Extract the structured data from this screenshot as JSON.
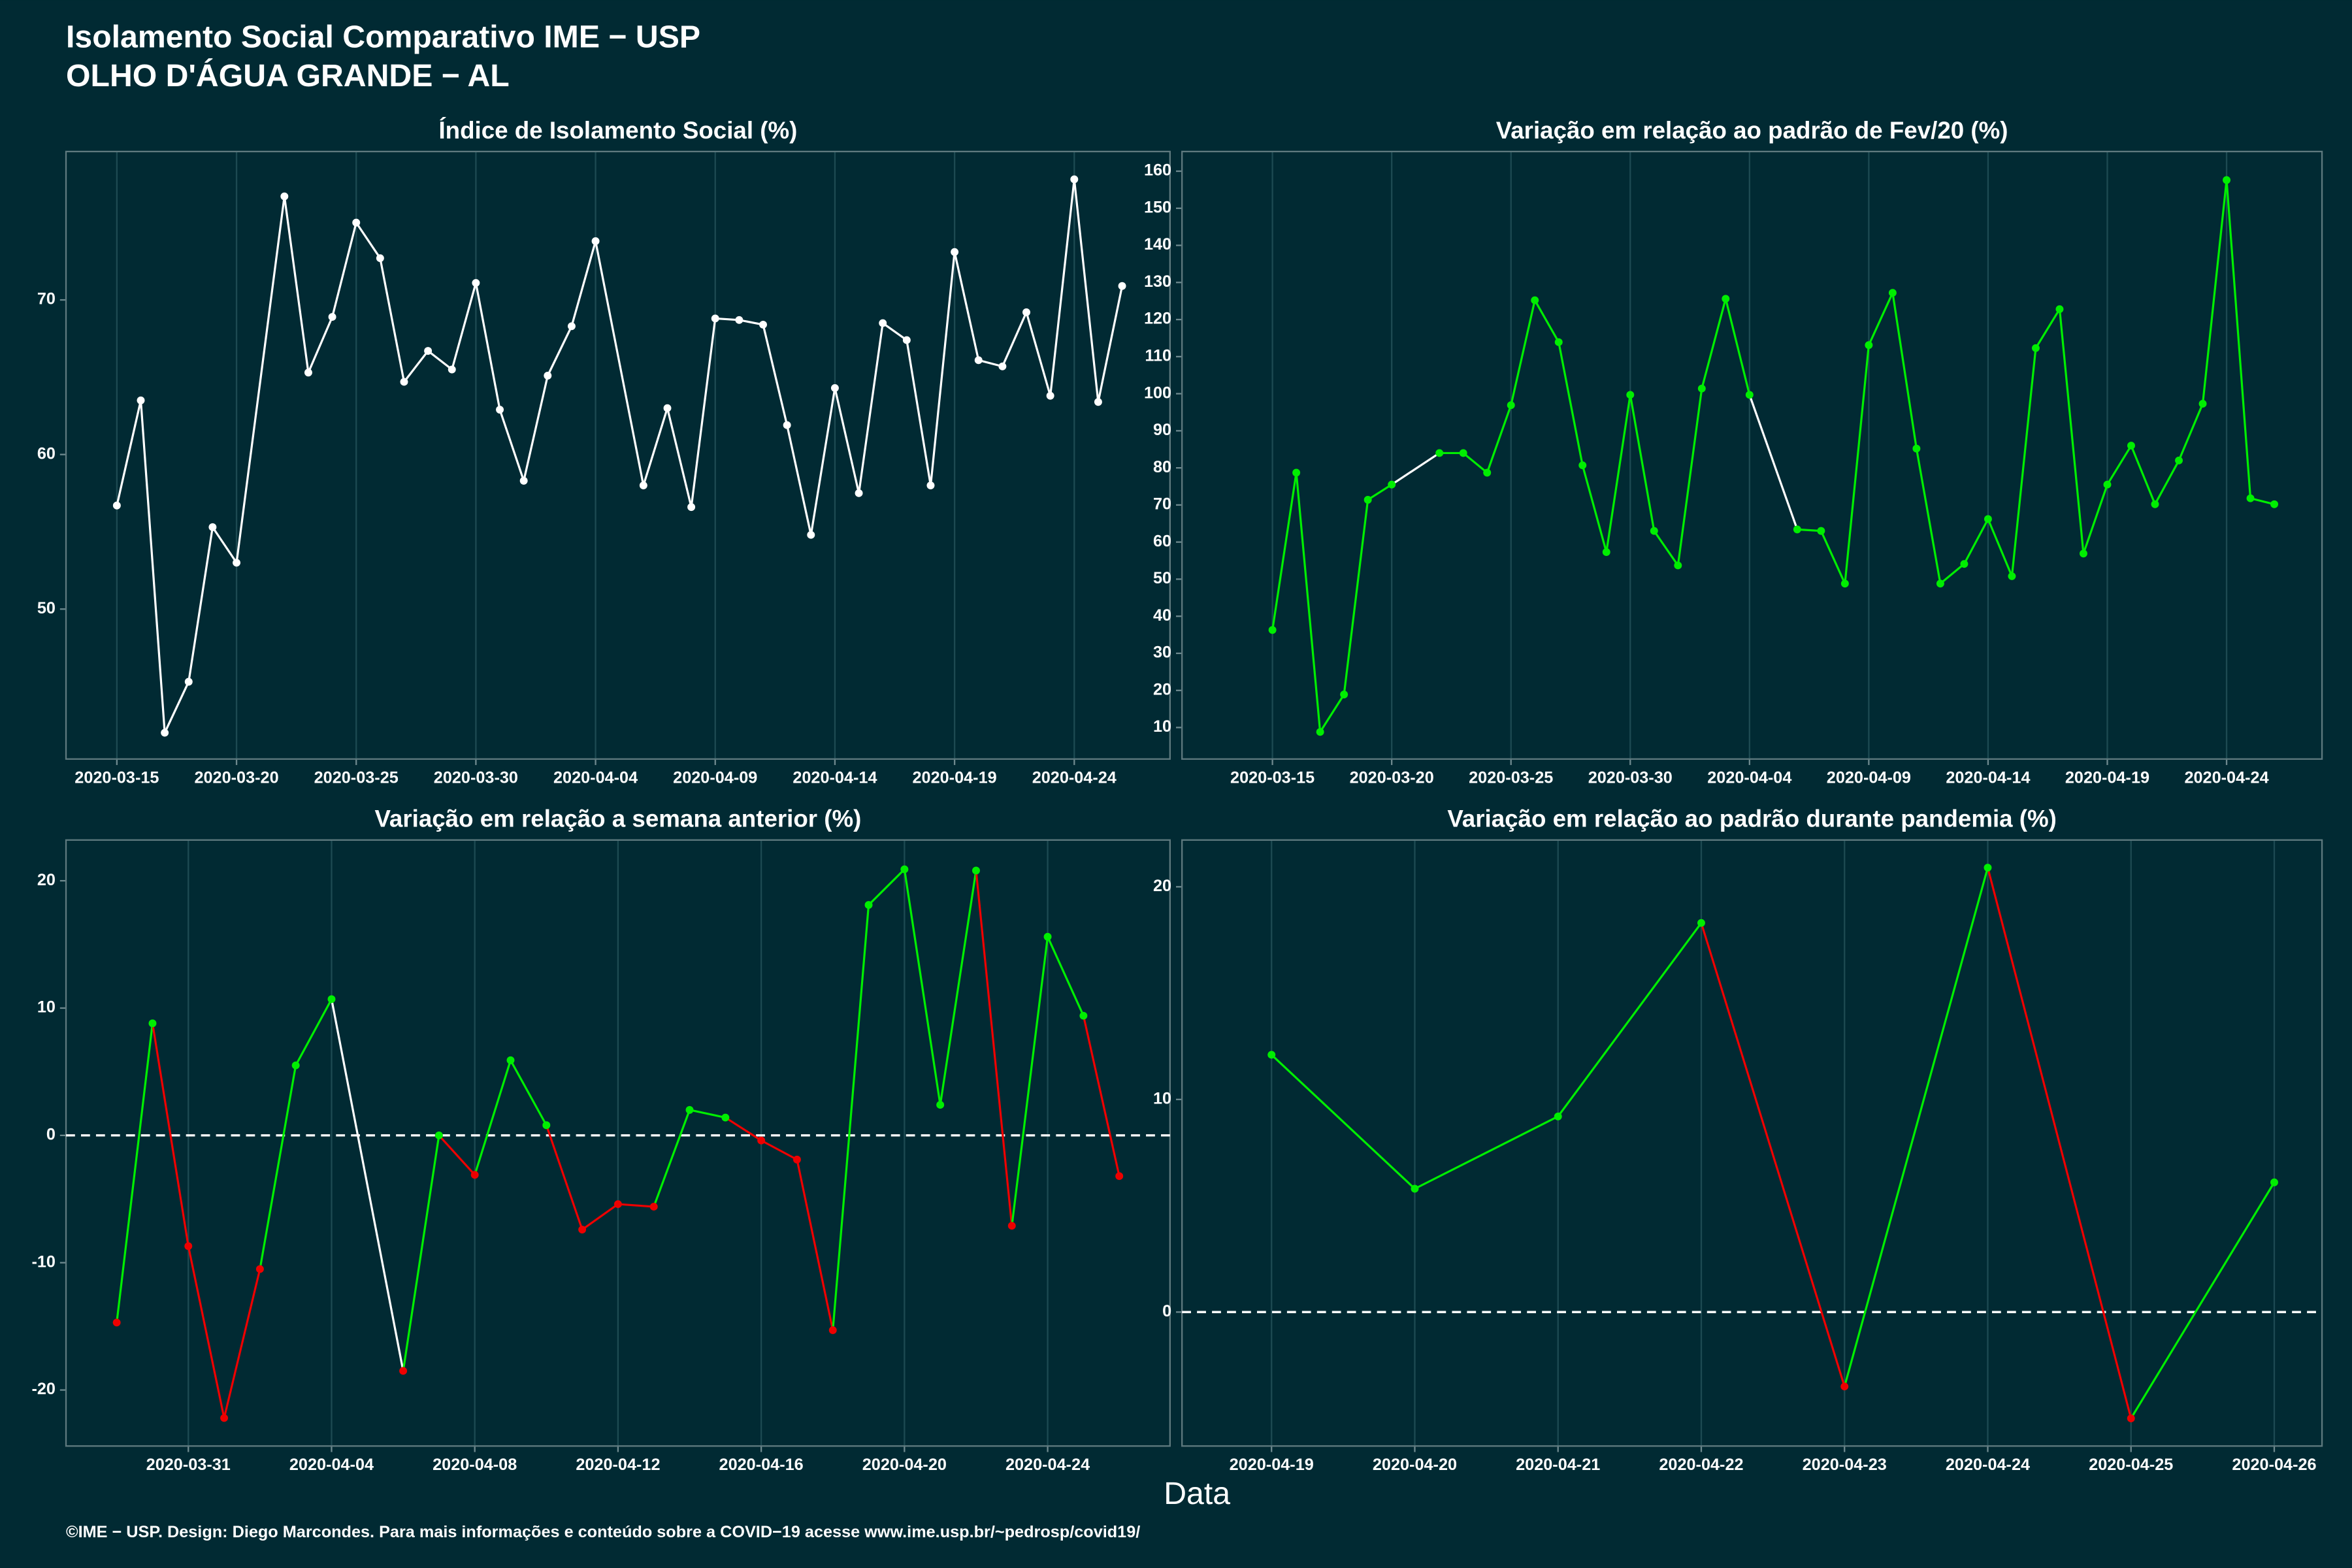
{
  "header": {
    "title": "Isolamento Social Comparativo IME − USP",
    "subtitle": "OLHO D'ÁGUA GRANDE − AL"
  },
  "xlabel": "Data",
  "footer": "©IME − USP. Design: Diego Marcondes. Para mais informações e conteúdo sobre a COVID−19 acesse www.ime.usp.br/~pedrosp/covid19/",
  "chart_data": [
    {
      "type": "line",
      "title": "Índice de Isolamento Social (%)",
      "color": "#ffffff",
      "gap_color": "#ffffff",
      "x": [
        "2020-03-15",
        "2020-03-16",
        "2020-03-17",
        "2020-03-18",
        "2020-03-19",
        "2020-03-20",
        "2020-03-22",
        "2020-03-23",
        "2020-03-24",
        "2020-03-25",
        "2020-03-26",
        "2020-03-27",
        "2020-03-28",
        "2020-03-29",
        "2020-03-30",
        "2020-03-31",
        "2020-04-01",
        "2020-04-02",
        "2020-04-03",
        "2020-04-04",
        "2020-04-06",
        "2020-04-07",
        "2020-04-08",
        "2020-04-09",
        "2020-04-10",
        "2020-04-11",
        "2020-04-12",
        "2020-04-13",
        "2020-04-14",
        "2020-04-15",
        "2020-04-16",
        "2020-04-17",
        "2020-04-18",
        "2020-04-19",
        "2020-04-20",
        "2020-04-21",
        "2020-04-22",
        "2020-04-23",
        "2020-04-24",
        "2020-04-25",
        "2020-04-26"
      ],
      "values": [
        56.7,
        63.5,
        42.0,
        45.3,
        55.3,
        53.0,
        76.7,
        65.3,
        68.9,
        75.0,
        72.7,
        64.7,
        66.7,
        65.5,
        71.1,
        62.9,
        58.3,
        65.1,
        68.3,
        73.8,
        58.0,
        63.0,
        56.6,
        68.8,
        68.7,
        68.4,
        61.9,
        54.8,
        64.3,
        57.5,
        68.5,
        67.4,
        58.0,
        73.1,
        66.1,
        65.7,
        69.2,
        63.8,
        77.8,
        63.4,
        70.9
      ],
      "xlim": [
        "2020-03-12T21:00Z",
        "2020-04-28T00:00Z"
      ],
      "ylim": [
        40.3,
        79.6
      ],
      "xticks": [
        "2020-03-15",
        "2020-03-20",
        "2020-03-25",
        "2020-03-30",
        "2020-04-04",
        "2020-04-09",
        "2020-04-14",
        "2020-04-19",
        "2020-04-24"
      ],
      "yticks": [
        50,
        60,
        70
      ]
    },
    {
      "type": "line",
      "title": "Variação em relação ao padrão de Fev/20 (%)",
      "color": "#00ee00",
      "gap_color": "#ffffff",
      "x": [
        "2020-03-15",
        "2020-03-16",
        "2020-03-17",
        "2020-03-18",
        "2020-03-19",
        "2020-03-20",
        "2020-03-22",
        "2020-03-23",
        "2020-03-24",
        "2020-03-25",
        "2020-03-26",
        "2020-03-27",
        "2020-03-28",
        "2020-03-29",
        "2020-03-30",
        "2020-03-31",
        "2020-04-01",
        "2020-04-02",
        "2020-04-03",
        "2020-04-04",
        "2020-04-06",
        "2020-04-07",
        "2020-04-08",
        "2020-04-09",
        "2020-04-10",
        "2020-04-11",
        "2020-04-12",
        "2020-04-13",
        "2020-04-14",
        "2020-04-15",
        "2020-04-16",
        "2020-04-17",
        "2020-04-18",
        "2020-04-19",
        "2020-04-20",
        "2020-04-21",
        "2020-04-22",
        "2020-04-23",
        "2020-04-24",
        "2020-04-25",
        "2020-04-26"
      ],
      "values": [
        36.3,
        78.7,
        8.8,
        18.9,
        71.4,
        75.5,
        84.0,
        84.0,
        78.7,
        96.9,
        125.2,
        113.9,
        80.7,
        57.3,
        99.7,
        63.0,
        53.7,
        101.4,
        125.6,
        99.7,
        63.4,
        63.0,
        48.8,
        113.1,
        127.2,
        85.2,
        48.8,
        54.1,
        66.2,
        50.8,
        112.3,
        122.8,
        56.9,
        75.5,
        86.0,
        70.2,
        82.0,
        97.3,
        157.6,
        71.8,
        70.2
      ],
      "xlim": [
        "2020-03-11T05:00Z",
        "2020-04-28T00:00Z"
      ],
      "ylim": [
        1.5,
        165.3
      ],
      "xticks": [
        "2020-03-15",
        "2020-03-20",
        "2020-03-25",
        "2020-03-30",
        "2020-04-04",
        "2020-04-09",
        "2020-04-14",
        "2020-04-19",
        "2020-04-24"
      ],
      "yticks": [
        10,
        20,
        30,
        40,
        50,
        60,
        70,
        80,
        90,
        100,
        110,
        120,
        130,
        140,
        150,
        160
      ]
    },
    {
      "type": "line",
      "title": "Variação em relação a semana anterior (%)",
      "positive_color": "#00ee00",
      "negative_color": "#ee0000",
      "gap_color": "#ffffff",
      "reference_line": 0,
      "x": [
        "2020-03-29",
        "2020-03-30",
        "2020-03-31",
        "2020-04-01",
        "2020-04-02",
        "2020-04-03",
        "2020-04-04",
        "2020-04-06",
        "2020-04-07",
        "2020-04-08",
        "2020-04-09",
        "2020-04-10",
        "2020-04-11",
        "2020-04-12",
        "2020-04-13",
        "2020-04-14",
        "2020-04-15",
        "2020-04-16",
        "2020-04-17",
        "2020-04-18",
        "2020-04-19",
        "2020-04-20",
        "2020-04-21",
        "2020-04-22",
        "2020-04-23",
        "2020-04-24",
        "2020-04-25",
        "2020-04-26"
      ],
      "values": [
        -14.7,
        8.8,
        -8.7,
        -22.2,
        -10.5,
        5.5,
        10.7,
        -18.5,
        0,
        -3.1,
        5.9,
        0.8,
        -7.4,
        -5.4,
        -5.6,
        2.0,
        1.4,
        -0.4,
        -1.9,
        -15.3,
        18.1,
        20.9,
        2.4,
        20.8,
        -7.1,
        15.6,
        9.4,
        -3.2
      ],
      "xlim": [
        "2020-03-27T14:00Z",
        "2020-04-27T10:00Z"
      ],
      "ylim": [
        -24.4,
        23.2
      ],
      "xticks": [
        "2020-03-31",
        "2020-04-04",
        "2020-04-08",
        "2020-04-12",
        "2020-04-16",
        "2020-04-20",
        "2020-04-24"
      ],
      "yticks": [
        -20,
        -10,
        0,
        10,
        20
      ]
    },
    {
      "type": "line",
      "title": "Variação em relação ao padrão durante pandemia (%)",
      "positive_color": "#00ee00",
      "negative_color": "#ee0000",
      "gap_color": "#ffffff",
      "reference_line": 0,
      "x": [
        "2020-04-19",
        "2020-04-20",
        "2020-04-21",
        "2020-04-22",
        "2020-04-23",
        "2020-04-24",
        "2020-04-25",
        "2020-04-26"
      ],
      "values": [
        12.1,
        5.8,
        9.2,
        18.3,
        -3.5,
        20.9,
        -5.0,
        6.1
      ],
      "xlim": [
        "2020-04-18T09:00Z",
        "2020-04-26T08:00Z"
      ],
      "ylim": [
        -6.3,
        22.2
      ],
      "xticks": [
        "2020-04-19",
        "2020-04-20",
        "2020-04-21",
        "2020-04-22",
        "2020-04-23",
        "2020-04-24",
        "2020-04-25",
        "2020-04-26"
      ],
      "yticks": [
        0,
        10,
        20
      ]
    }
  ]
}
